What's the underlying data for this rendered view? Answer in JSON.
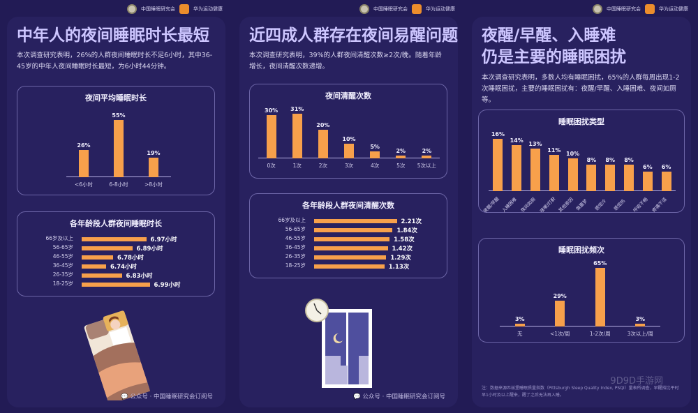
{
  "brand": {
    "org": "中国睡眠研究会",
    "partner": "华为运动健康"
  },
  "footer": "公众号 · 中国睡眠研究会订阅号",
  "watermark": "9D9D手游网",
  "colors": {
    "background": "#221b55",
    "card": "#28215f",
    "title": "#cdc6ff",
    "bar": "#f7a04b"
  },
  "panels": [
    {
      "title": "中年人的夜间睡眠时长最短",
      "desc": "本次调查研究表明，26%的人群夜间睡眠时长不足6小时，其中36-45岁的中年人夜间睡眠时长最短，为6小时44分钟。",
      "illustration": "sleeping-person-in-bed"
    },
    {
      "title": "近四成人群存在夜间易醒问题",
      "desc": "本次调查研究表明，39%的人群夜间清醒次数≥2次/晚。随着年龄增长，夜间清醒次数递增。",
      "illustration": "clock-and-night-window"
    },
    {
      "title": "夜醒/早醒、入睡难\n仍是主要的睡眠困扰",
      "desc": "本次调查研究表明，多数人均有睡眠困扰，65%的人群每周出现1-2次睡眠困扰，主要的睡眠困扰有：夜醒/早醒、入睡困难、夜间如厕等。",
      "note": "注：数据来源匹兹堡睡眠质量指数（Pittsburgh Sleep Quality Index, PSQI）量表所调查，早醒指比平时早1小时及以上醒来，醒了之后无法再入睡。"
    }
  ],
  "chart_data": [
    {
      "type": "bar",
      "title": "夜间平均睡眠时长",
      "categories": [
        "<6小时",
        "6-8小时",
        ">8小时"
      ],
      "values": [
        26,
        55,
        19
      ],
      "labels": [
        "26%",
        "55%",
        "19%"
      ],
      "unit": "%"
    },
    {
      "type": "bar",
      "orientation": "horizontal",
      "title": "各年龄段人群夜间睡眠时长",
      "categories": [
        "66岁及以上",
        "56-65岁",
        "46-55岁",
        "36-45岁",
        "26-35岁",
        "18-25岁"
      ],
      "values": [
        6.97,
        6.89,
        6.78,
        6.74,
        6.83,
        6.99
      ],
      "labels": [
        "6.97小时",
        "6.89小时",
        "6.78小时",
        "6.74小时",
        "6.83小时",
        "6.99小时"
      ],
      "unit": "小时"
    },
    {
      "type": "bar",
      "title": "夜间清醒次数",
      "categories": [
        "0次",
        "1次",
        "2次",
        "3次",
        "4次",
        "5次",
        "5次以上"
      ],
      "values": [
        30,
        31,
        20,
        10,
        5,
        2,
        2
      ],
      "labels": [
        "30%",
        "31%",
        "20%",
        "10%",
        "5%",
        "2%",
        "2%"
      ],
      "unit": "%"
    },
    {
      "type": "bar",
      "orientation": "horizontal",
      "title": "各年龄段人群夜间清醒次数",
      "categories": [
        "66岁及以上",
        "56-65岁",
        "46-55岁",
        "36-45岁",
        "26-35岁",
        "18-25岁"
      ],
      "values": [
        2.21,
        1.84,
        1.58,
        1.42,
        1.29,
        1.13
      ],
      "labels": [
        "2.21次",
        "1.84次",
        "1.58次",
        "1.42次",
        "1.29次",
        "1.13次"
      ],
      "unit": "次"
    },
    {
      "type": "bar",
      "title": "睡眠困扰类型",
      "categories": [
        "夜醒/早醒",
        "入睡困难",
        "夜间如厕",
        "咳嗽/打鼾",
        "其他原因",
        "做噩梦",
        "感觉冷",
        "感觉热",
        "呼吸不畅",
        "疼痛不适"
      ],
      "values": [
        16,
        14,
        13,
        11,
        10,
        8,
        8,
        8,
        6,
        6
      ],
      "labels": [
        "16%",
        "14%",
        "13%",
        "11%",
        "10%",
        "8%",
        "8%",
        "8%",
        "6%",
        "6%"
      ],
      "unit": "%"
    },
    {
      "type": "bar",
      "title": "睡眠困扰频次",
      "categories": [
        "无",
        "<1次/周",
        "1-2次/周",
        "3次以上/周"
      ],
      "values": [
        3,
        29,
        65,
        3
      ],
      "labels": [
        "3%",
        "29%",
        "65%",
        "3%"
      ],
      "unit": "%"
    }
  ]
}
